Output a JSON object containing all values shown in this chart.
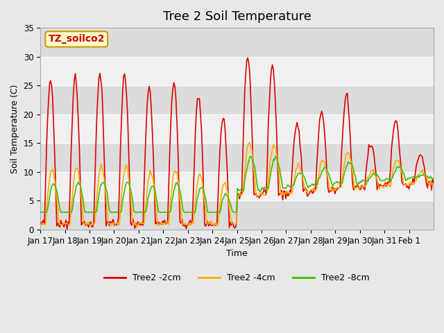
{
  "title": "Tree 2 Soil Temperature",
  "xlabel": "Time",
  "ylabel": "Soil Temperature (C)",
  "ylim": [
    0,
    35
  ],
  "xlim_labels": [
    "Jan 17",
    "Jan 18",
    "Jan 19",
    "Jan 20",
    "Jan 21",
    "Jan 22",
    "Jan 23",
    "Jan 24",
    "Jan 25",
    "Jan 26",
    "Jan 27",
    "Jan 28",
    "Jan 29",
    "Jan 30",
    "Jan 31",
    "Feb 1"
  ],
  "annotation_text": "TZ_soilco2",
  "annotation_bg": "#ffffcc",
  "annotation_border": "#cc9900",
  "annotation_text_color": "#cc0000",
  "bg_color": "#e8e8e8",
  "series": {
    "Tree2 -2cm": {
      "color": "#dd0000",
      "lw": 1.2
    },
    "Tree2 -4cm": {
      "color": "#ffaa00",
      "lw": 1.2
    },
    "Tree2 -8cm": {
      "color": "#44bb00",
      "lw": 1.2
    }
  },
  "peak_scales": [
    26,
    26.5,
    27,
    27,
    24.5,
    25.5,
    23.5,
    19.5,
    30,
    28.5,
    18.5,
    20.5,
    23.5,
    15,
    19,
    13
  ],
  "title_fontsize": 13,
  "axis_fontsize": 9,
  "tick_fontsize": 8.5
}
